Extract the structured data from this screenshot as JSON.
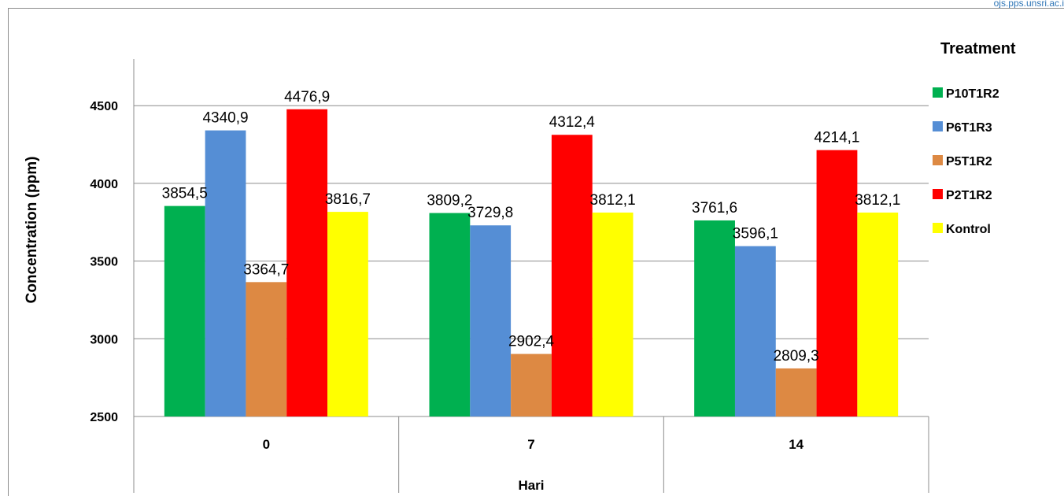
{
  "watermark": "ojs.pps.unsri.ac.i",
  "chart_data": {
    "type": "bar",
    "title": "",
    "xlabel": "Hari",
    "ylabel": "Concentration (ppm)",
    "ylim": [
      2500,
      4800
    ],
    "yticks": [
      2500,
      3000,
      3500,
      4000,
      4500
    ],
    "grid": true,
    "categories": [
      "0",
      "7",
      "14"
    ],
    "legend": {
      "title": "Treatment",
      "position": "right"
    },
    "series": [
      {
        "name": "P10T1R2",
        "color": "#00b050",
        "values": [
          3854.5,
          3809.2,
          3761.6
        ],
        "labels": [
          "3854,5",
          "3809,2",
          "3761,6"
        ]
      },
      {
        "name": "P6T1R3",
        "color": "#558ed5",
        "values": [
          4340.9,
          3729.8,
          3596.1
        ],
        "labels": [
          "4340,9",
          "3729,8",
          "3596,1"
        ]
      },
      {
        "name": "P5T1R2",
        "color": "#dd8943",
        "values": [
          3364.7,
          2902.4,
          2809.3
        ],
        "labels": [
          "3364,7",
          "2902,4",
          "2809,3"
        ]
      },
      {
        "name": "P2T1R2",
        "color": "#ff0000",
        "values": [
          4476.9,
          4312.4,
          4214.1
        ],
        "labels": [
          "4476,9",
          "4312,4",
          "4214,1"
        ]
      },
      {
        "name": "Kontrol",
        "color": "#ffff00",
        "values": [
          3816.7,
          3812.1,
          3812.1
        ],
        "labels": [
          "3816,7",
          "3812,1",
          "3812,1"
        ]
      }
    ]
  }
}
